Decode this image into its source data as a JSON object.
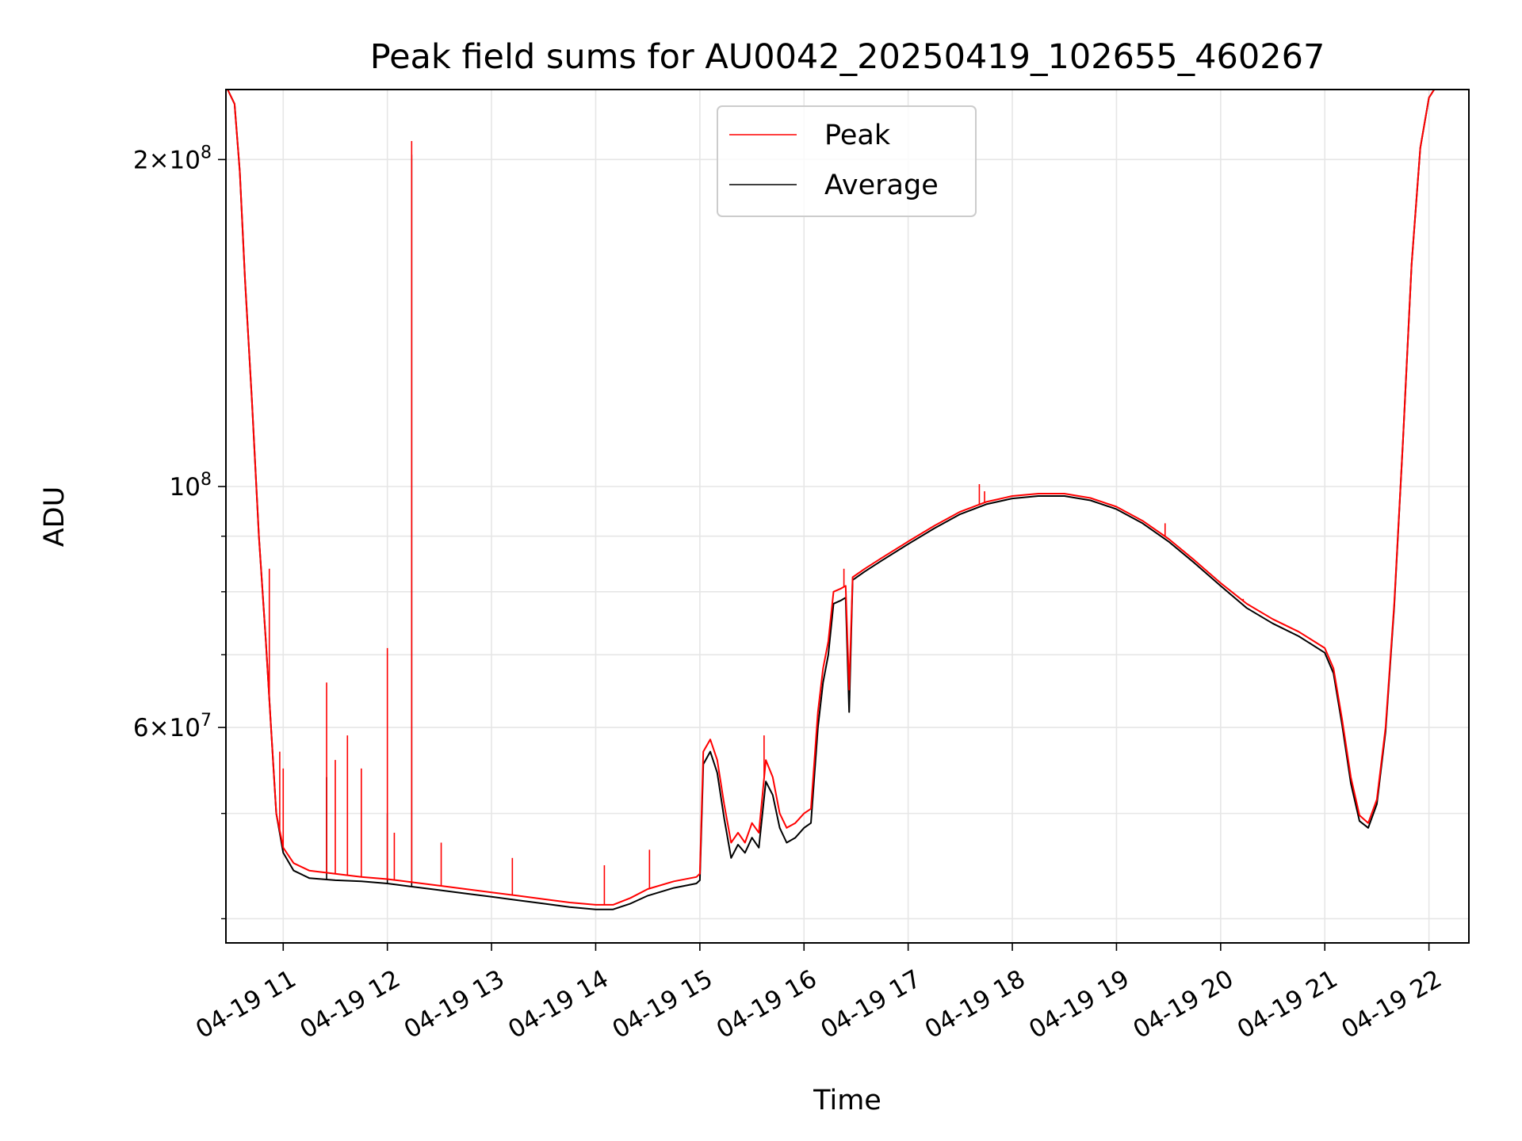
{
  "chart_data": {
    "type": "line",
    "title": "Peak field sums for AU0042_20250419_102655_460267",
    "xlabel": "Time",
    "ylabel": "ADU",
    "yscale": "log",
    "grid": true,
    "legend_position": "upper center",
    "xlim": [
      "2025-04-19T10:27",
      "2025-04-19T22:23"
    ],
    "ylim": [
      38000000,
      232000000
    ],
    "x_ticks": [
      {
        "t": "2025-04-19T11:00",
        "label": "04-19 11"
      },
      {
        "t": "2025-04-19T12:00",
        "label": "04-19 12"
      },
      {
        "t": "2025-04-19T13:00",
        "label": "04-19 13"
      },
      {
        "t": "2025-04-19T14:00",
        "label": "04-19 14"
      },
      {
        "t": "2025-04-19T15:00",
        "label": "04-19 15"
      },
      {
        "t": "2025-04-19T16:00",
        "label": "04-19 16"
      },
      {
        "t": "2025-04-19T17:00",
        "label": "04-19 17"
      },
      {
        "t": "2025-04-19T18:00",
        "label": "04-19 18"
      },
      {
        "t": "2025-04-19T19:00",
        "label": "04-19 19"
      },
      {
        "t": "2025-04-19T20:00",
        "label": "04-19 20"
      },
      {
        "t": "2025-04-19T21:00",
        "label": "04-19 21"
      },
      {
        "t": "2025-04-19T22:00",
        "label": "04-19 22"
      }
    ],
    "y_major_ticks": [
      {
        "v": 60000000,
        "base": "6×10",
        "exp": "7"
      },
      {
        "v": 100000000,
        "base": "10",
        "exp": "8"
      },
      {
        "v": 200000000,
        "base": "2×10",
        "exp": "8"
      }
    ],
    "y_minor_ticks": [
      40000000,
      50000000,
      70000000,
      80000000,
      90000000
    ],
    "series": [
      {
        "name": "Peak",
        "color": "#ff0000",
        "points": [
          [
            "2025-04-19T10:28",
            232000000
          ],
          [
            "2025-04-19T10:32",
            225000000
          ],
          [
            "2025-04-19T10:35",
            195000000
          ],
          [
            "2025-04-19T10:38",
            155000000
          ],
          [
            "2025-04-19T10:42",
            120000000
          ],
          [
            "2025-04-19T10:46",
            90000000
          ],
          [
            "2025-04-19T10:50",
            72000000
          ],
          [
            "2025-04-19T10:53",
            60000000
          ],
          [
            "2025-04-19T10:56",
            50000000
          ],
          [
            "2025-04-19T11:00",
            46500000
          ],
          [
            "2025-04-19T11:06",
            45000000
          ],
          [
            "2025-04-19T11:15",
            44300000
          ],
          [
            "2025-04-19T11:30",
            44000000
          ],
          [
            "2025-04-19T11:45",
            43700000
          ],
          [
            "2025-04-19T12:00",
            43500000
          ],
          [
            "2025-04-19T12:15",
            43200000
          ],
          [
            "2025-04-19T12:30",
            42900000
          ],
          [
            "2025-04-19T12:45",
            42600000
          ],
          [
            "2025-04-19T13:00",
            42300000
          ],
          [
            "2025-04-19T13:15",
            42000000
          ],
          [
            "2025-04-19T13:30",
            41700000
          ],
          [
            "2025-04-19T13:45",
            41400000
          ],
          [
            "2025-04-19T14:00",
            41200000
          ],
          [
            "2025-04-19T14:10",
            41200000
          ],
          [
            "2025-04-19T14:20",
            41800000
          ],
          [
            "2025-04-19T14:30",
            42600000
          ],
          [
            "2025-04-19T14:45",
            43300000
          ],
          [
            "2025-04-19T14:58",
            43700000
          ],
          [
            "2025-04-19T15:00",
            44000000
          ],
          [
            "2025-04-19T15:02",
            57000000
          ],
          [
            "2025-04-19T15:06",
            58500000
          ],
          [
            "2025-04-19T15:10",
            56000000
          ],
          [
            "2025-04-19T15:14",
            51000000
          ],
          [
            "2025-04-19T15:18",
            47000000
          ],
          [
            "2025-04-19T15:22",
            48000000
          ],
          [
            "2025-04-19T15:26",
            47000000
          ],
          [
            "2025-04-19T15:30",
            49000000
          ],
          [
            "2025-04-19T15:34",
            48000000
          ],
          [
            "2025-04-19T15:38",
            56000000
          ],
          [
            "2025-04-19T15:42",
            54000000
          ],
          [
            "2025-04-19T15:46",
            50000000
          ],
          [
            "2025-04-19T15:50",
            48500000
          ],
          [
            "2025-04-19T15:55",
            49000000
          ],
          [
            "2025-04-19T16:00",
            50000000
          ],
          [
            "2025-04-19T16:04",
            50500000
          ],
          [
            "2025-04-19T16:08",
            62000000
          ],
          [
            "2025-04-19T16:11",
            68000000
          ],
          [
            "2025-04-19T16:14",
            72000000
          ],
          [
            "2025-04-19T16:17",
            80000000
          ],
          [
            "2025-04-19T16:21",
            80500000
          ],
          [
            "2025-04-19T16:24",
            81000000
          ],
          [
            "2025-04-19T16:26",
            65000000
          ],
          [
            "2025-04-19T16:28",
            82500000
          ],
          [
            "2025-04-19T16:35",
            84000000
          ],
          [
            "2025-04-19T16:45",
            86000000
          ],
          [
            "2025-04-19T17:00",
            89000000
          ],
          [
            "2025-04-19T17:15",
            92000000
          ],
          [
            "2025-04-19T17:30",
            94800000
          ],
          [
            "2025-04-19T17:45",
            96800000
          ],
          [
            "2025-04-19T18:00",
            98000000
          ],
          [
            "2025-04-19T18:15",
            98500000
          ],
          [
            "2025-04-19T18:30",
            98500000
          ],
          [
            "2025-04-19T18:45",
            97600000
          ],
          [
            "2025-04-19T19:00",
            95800000
          ],
          [
            "2025-04-19T19:15",
            93000000
          ],
          [
            "2025-04-19T19:30",
            89500000
          ],
          [
            "2025-04-19T19:45",
            85500000
          ],
          [
            "2025-04-19T20:00",
            81500000
          ],
          [
            "2025-04-19T20:15",
            78000000
          ],
          [
            "2025-04-19T20:30",
            75500000
          ],
          [
            "2025-04-19T20:45",
            73500000
          ],
          [
            "2025-04-19T21:00",
            71000000
          ],
          [
            "2025-04-19T21:05",
            68000000
          ],
          [
            "2025-04-19T21:10",
            61000000
          ],
          [
            "2025-04-19T21:15",
            54000000
          ],
          [
            "2025-04-19T21:20",
            49800000
          ],
          [
            "2025-04-19T21:25",
            49000000
          ],
          [
            "2025-04-19T21:30",
            51500000
          ],
          [
            "2025-04-19T21:35",
            60000000
          ],
          [
            "2025-04-19T21:40",
            78000000
          ],
          [
            "2025-04-19T21:45",
            110000000
          ],
          [
            "2025-04-19T21:50",
            160000000
          ],
          [
            "2025-04-19T21:55",
            205000000
          ],
          [
            "2025-04-19T22:00",
            228000000
          ],
          [
            "2025-04-19T22:03",
            232000000
          ]
        ],
        "spikes": [
          [
            "2025-04-19T10:52",
            84000000
          ],
          [
            "2025-04-19T10:58",
            57000000
          ],
          [
            "2025-04-19T11:00",
            55000000
          ],
          [
            "2025-04-19T11:25",
            66000000
          ],
          [
            "2025-04-19T11:30",
            56000000
          ],
          [
            "2025-04-19T11:37",
            59000000
          ],
          [
            "2025-04-19T11:45",
            55000000
          ],
          [
            "2025-04-19T12:00",
            71000000
          ],
          [
            "2025-04-19T12:04",
            48000000
          ],
          [
            "2025-04-19T12:14",
            208000000
          ],
          [
            "2025-04-19T12:31",
            47000000
          ],
          [
            "2025-04-19T13:12",
            45500000
          ],
          [
            "2025-04-19T14:05",
            44800000
          ],
          [
            "2025-04-19T14:31",
            46300000
          ],
          [
            "2025-04-19T15:37",
            59000000
          ],
          [
            "2025-04-19T16:23",
            84000000
          ],
          [
            "2025-04-19T17:41",
            100500000
          ],
          [
            "2025-04-19T17:44",
            99000000
          ],
          [
            "2025-04-19T19:28",
            92500000
          ],
          [
            "2025-04-19T20:13",
            78800000
          ]
        ]
      },
      {
        "name": "Average",
        "color": "#000000",
        "points": [
          [
            "2025-04-19T10:28",
            232000000
          ],
          [
            "2025-04-19T10:32",
            225000000
          ],
          [
            "2025-04-19T10:35",
            195000000
          ],
          [
            "2025-04-19T10:38",
            155000000
          ],
          [
            "2025-04-19T10:42",
            120000000
          ],
          [
            "2025-04-19T10:46",
            90000000
          ],
          [
            "2025-04-19T10:50",
            72000000
          ],
          [
            "2025-04-19T10:53",
            60000000
          ],
          [
            "2025-04-19T10:56",
            50000000
          ],
          [
            "2025-04-19T11:00",
            46000000
          ],
          [
            "2025-04-19T11:06",
            44300000
          ],
          [
            "2025-04-19T11:15",
            43600000
          ],
          [
            "2025-04-19T11:30",
            43400000
          ],
          [
            "2025-04-19T11:45",
            43300000
          ],
          [
            "2025-04-19T12:00",
            43100000
          ],
          [
            "2025-04-19T12:15",
            42800000
          ],
          [
            "2025-04-19T12:30",
            42500000
          ],
          [
            "2025-04-19T12:45",
            42200000
          ],
          [
            "2025-04-19T13:00",
            41900000
          ],
          [
            "2025-04-19T13:15",
            41600000
          ],
          [
            "2025-04-19T13:30",
            41300000
          ],
          [
            "2025-04-19T13:45",
            41000000
          ],
          [
            "2025-04-19T14:00",
            40800000
          ],
          [
            "2025-04-19T14:10",
            40800000
          ],
          [
            "2025-04-19T14:20",
            41300000
          ],
          [
            "2025-04-19T14:30",
            42000000
          ],
          [
            "2025-04-19T14:45",
            42700000
          ],
          [
            "2025-04-19T14:58",
            43100000
          ],
          [
            "2025-04-19T15:00",
            43400000
          ],
          [
            "2025-04-19T15:02",
            55500000
          ],
          [
            "2025-04-19T15:06",
            57000000
          ],
          [
            "2025-04-19T15:10",
            54500000
          ],
          [
            "2025-04-19T15:14",
            49500000
          ],
          [
            "2025-04-19T15:18",
            45500000
          ],
          [
            "2025-04-19T15:22",
            46800000
          ],
          [
            "2025-04-19T15:26",
            46000000
          ],
          [
            "2025-04-19T15:30",
            47500000
          ],
          [
            "2025-04-19T15:34",
            46500000
          ],
          [
            "2025-04-19T15:38",
            53500000
          ],
          [
            "2025-04-19T15:42",
            52000000
          ],
          [
            "2025-04-19T15:46",
            48500000
          ],
          [
            "2025-04-19T15:50",
            47000000
          ],
          [
            "2025-04-19T15:55",
            47500000
          ],
          [
            "2025-04-19T16:00",
            48500000
          ],
          [
            "2025-04-19T16:04",
            49000000
          ],
          [
            "2025-04-19T16:08",
            60000000
          ],
          [
            "2025-04-19T16:11",
            66000000
          ],
          [
            "2025-04-19T16:14",
            70000000
          ],
          [
            "2025-04-19T16:17",
            78000000
          ],
          [
            "2025-04-19T16:21",
            78500000
          ],
          [
            "2025-04-19T16:24",
            79000000
          ],
          [
            "2025-04-19T16:26",
            62000000
          ],
          [
            "2025-04-19T16:28",
            82000000
          ],
          [
            "2025-04-19T16:35",
            83500000
          ],
          [
            "2025-04-19T16:45",
            85500000
          ],
          [
            "2025-04-19T17:00",
            88500000
          ],
          [
            "2025-04-19T17:15",
            91500000
          ],
          [
            "2025-04-19T17:30",
            94300000
          ],
          [
            "2025-04-19T17:45",
            96300000
          ],
          [
            "2025-04-19T18:00",
            97500000
          ],
          [
            "2025-04-19T18:15",
            98000000
          ],
          [
            "2025-04-19T18:30",
            98000000
          ],
          [
            "2025-04-19T18:45",
            97100000
          ],
          [
            "2025-04-19T19:00",
            95300000
          ],
          [
            "2025-04-19T19:15",
            92500000
          ],
          [
            "2025-04-19T19:30",
            89000000
          ],
          [
            "2025-04-19T19:45",
            85000000
          ],
          [
            "2025-04-19T20:00",
            81000000
          ],
          [
            "2025-04-19T20:15",
            77300000
          ],
          [
            "2025-04-19T20:30",
            74800000
          ],
          [
            "2025-04-19T20:45",
            72800000
          ],
          [
            "2025-04-19T21:00",
            70300000
          ],
          [
            "2025-04-19T21:05",
            67300000
          ],
          [
            "2025-04-19T21:10",
            60300000
          ],
          [
            "2025-04-19T21:15",
            53300000
          ],
          [
            "2025-04-19T21:20",
            49200000
          ],
          [
            "2025-04-19T21:25",
            48500000
          ],
          [
            "2025-04-19T21:30",
            51000000
          ],
          [
            "2025-04-19T21:35",
            59500000
          ],
          [
            "2025-04-19T21:40",
            77500000
          ],
          [
            "2025-04-19T21:45",
            110000000
          ],
          [
            "2025-04-19T21:50",
            160000000
          ],
          [
            "2025-04-19T21:55",
            205000000
          ],
          [
            "2025-04-19T22:00",
            228000000
          ],
          [
            "2025-04-19T22:03",
            232000000
          ]
        ],
        "spikes": [
          [
            "2025-04-19T11:25",
            54000000
          ],
          [
            "2025-04-19T12:00",
            50000000
          ],
          [
            "2025-04-19T12:14",
            202000000
          ],
          [
            "2025-04-19T16:26",
            62000000
          ]
        ]
      }
    ]
  }
}
